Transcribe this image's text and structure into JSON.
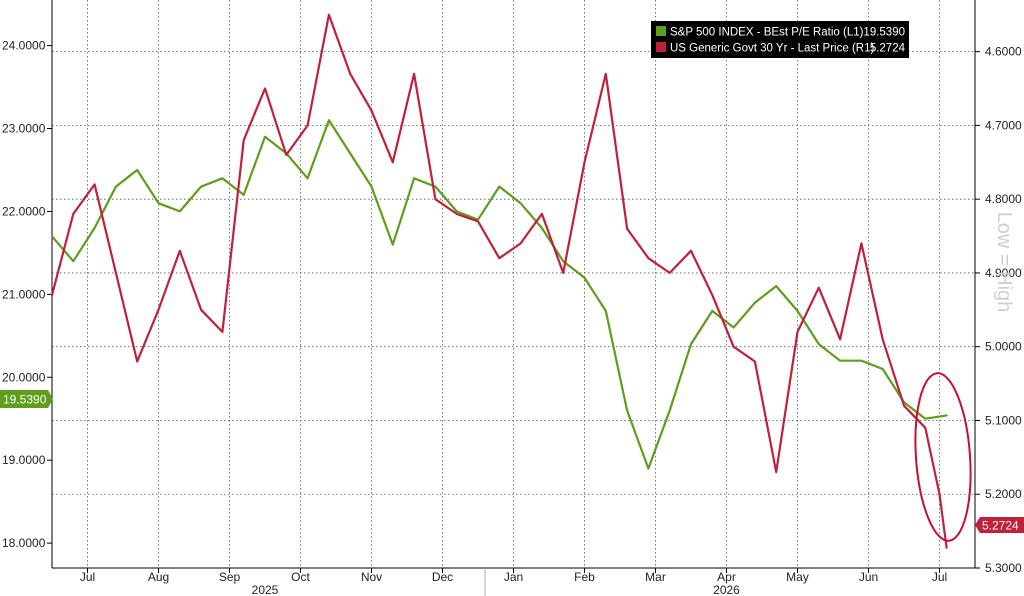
{
  "chart_data": {
    "type": "line",
    "title": "",
    "xlabel": "",
    "ylabel_right": "Low = High",
    "x_months": [
      "Jul",
      "Aug",
      "Sep",
      "Oct",
      "Nov",
      "Dec",
      "Jan",
      "Feb",
      "Mar",
      "Apr",
      "May",
      "Jun",
      "Jul"
    ],
    "x_years": [
      "2025",
      "2026"
    ],
    "y_left": {
      "ticks": [
        "24.0000",
        "23.0000",
        "22.0000",
        "21.0000",
        "20.0000",
        "19.0000",
        "18.0000"
      ],
      "range": [
        17.7,
        24.55
      ]
    },
    "y_right": {
      "ticks": [
        "4.6000",
        "4.7000",
        "4.8000",
        "4.9000",
        "5.0000",
        "5.1000",
        "5.2000",
        "5.3000"
      ],
      "range": [
        4.53,
        5.3
      ],
      "inverted": true
    },
    "grid": true,
    "legend_position": "top-right",
    "series": [
      {
        "name": "S&P 500 INDEX - BEst P/E Ratio (L1)",
        "axis": "left",
        "color": "#5d9e1a",
        "last_value": "19.5390",
        "x": [
          0.0,
          0.3,
          0.6,
          0.9,
          1.2,
          1.5,
          1.8,
          2.1,
          2.4,
          2.7,
          3.0,
          3.3,
          3.6,
          3.9,
          4.2,
          4.5,
          4.8,
          5.1,
          5.4,
          5.7,
          6.0,
          6.3,
          6.6,
          6.9,
          7.2,
          7.5,
          7.8,
          8.1,
          8.4,
          8.7,
          9.0,
          9.3,
          9.6,
          9.9,
          10.2,
          10.5,
          10.8,
          11.1,
          11.4,
          11.7,
          12.0,
          12.3,
          12.6
        ],
        "values": [
          21.7,
          21.4,
          21.8,
          22.3,
          22.5,
          22.1,
          22.0,
          22.3,
          22.4,
          22.2,
          22.9,
          22.7,
          22.4,
          23.1,
          22.7,
          22.3,
          21.6,
          22.4,
          22.3,
          22.0,
          21.9,
          22.3,
          22.1,
          21.8,
          21.4,
          21.2,
          20.8,
          19.6,
          18.9,
          19.6,
          20.4,
          20.8,
          20.6,
          20.9,
          21.1,
          20.8,
          20.4,
          20.2,
          20.2,
          20.1,
          19.7,
          19.5,
          19.54
        ]
      },
      {
        "name": "US Generic Govt 30 Yr - Last Price (R1)",
        "axis": "right",
        "color": "#c0203a",
        "last_value": "5.2724",
        "x": [
          0.0,
          0.3,
          0.6,
          0.9,
          1.2,
          1.5,
          1.8,
          2.1,
          2.4,
          2.7,
          3.0,
          3.3,
          3.6,
          3.9,
          4.2,
          4.5,
          4.8,
          5.1,
          5.4,
          5.7,
          6.0,
          6.3,
          6.6,
          6.9,
          7.2,
          7.5,
          7.8,
          8.1,
          8.4,
          8.7,
          9.0,
          9.3,
          9.6,
          9.9,
          10.2,
          10.5,
          10.8,
          11.1,
          11.4,
          11.7,
          12.0,
          12.3,
          12.5,
          12.6
        ],
        "values": [
          4.93,
          4.82,
          4.78,
          4.9,
          5.02,
          4.95,
          4.87,
          4.95,
          4.98,
          4.72,
          4.65,
          4.74,
          4.7,
          4.55,
          4.63,
          4.68,
          4.75,
          4.63,
          4.8,
          4.82,
          4.83,
          4.88,
          4.86,
          4.82,
          4.9,
          4.75,
          4.63,
          4.84,
          4.88,
          4.9,
          4.87,
          4.93,
          5.0,
          5.02,
          5.17,
          4.98,
          4.92,
          4.99,
          4.86,
          4.99,
          5.08,
          5.11,
          5.2,
          5.2724
        ]
      }
    ],
    "annotations": [
      {
        "type": "ellipse",
        "color": "#c8102e",
        "x_center": 12.45,
        "y_right_center": 5.168
      }
    ]
  }
}
